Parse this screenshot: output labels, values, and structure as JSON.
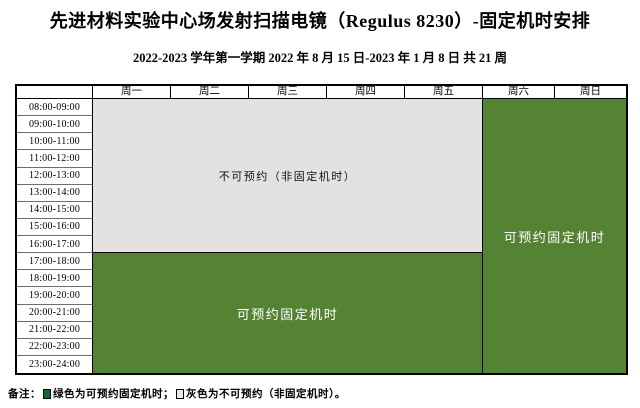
{
  "page": {
    "title": "先进材料实验中心场发射扫描电镜（Regulus 8230）-固定机时安排",
    "subtitle": "2022-2023 学年第一学期 2022 年 8 月 15 日-2023 年 1 月 8 日 共 21 周"
  },
  "schedule": {
    "day_headers": [
      "周一",
      "周二",
      "周三",
      "周四",
      "周五",
      "周六",
      "周日"
    ],
    "time_slots": [
      "08:00-09:00",
      "09:00-10:00",
      "10:00-11:00",
      "11:00-12:00",
      "12:00-13:00",
      "13:00-14:00",
      "14:00-15:00",
      "15:00-16:00",
      "16:00-17:00",
      "17:00-18:00",
      "18:00-19:00",
      "19:00-20:00",
      "20:00-21:00",
      "21:00-22:00",
      "22:00-23:00",
      "23:00-24:00"
    ],
    "regions": {
      "weekday_daytime_unavailable": {
        "label": "不可预约（非固定机时）"
      },
      "weekday_evening_available": {
        "label": "可预约固定机时"
      },
      "weekend_available": {
        "label": "可预约固定机时"
      }
    }
  },
  "remarks": {
    "prefix": "备注：",
    "green_legend": "绿色为可预约固定机时；",
    "gray_legend": "灰色为不可预约（非固定机时）。"
  },
  "colors": {
    "available_green": "#558334",
    "unavailable_gray": "#e3e1e1",
    "legend_green_swatch": "#0c6b2b",
    "legend_gray_swatch": "#ebe9e9",
    "border_black": "#000000"
  }
}
